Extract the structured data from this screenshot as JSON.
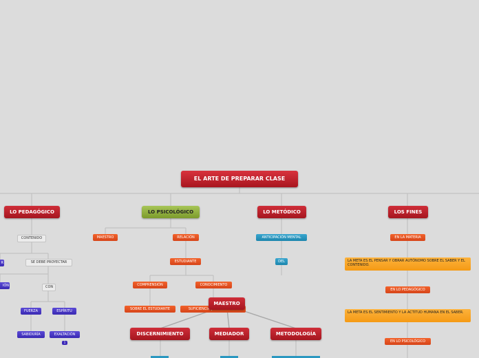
{
  "map": {
    "root": "EL ARTE DE PREPARAR CLASE",
    "main_topics": {
      "pedagogico": "LO PEDAGÓGICO",
      "psicologico": "LO PSICOLÓGICO",
      "metodico": "LO METÓDICO",
      "fines": "LOS FINES"
    },
    "pedagogico": {
      "contenido": "CONTENIDO",
      "left_partial_1": "R",
      "left_partial_2": "IÓN",
      "proyectar": "SE DEBE PROYECTAR",
      "con": "CON",
      "fuerza": "FUERZA",
      "espiritu": "ESPÍRITU",
      "sabiduria": "SABIDURÍA",
      "exaltacion": "EXALTACIÓN",
      "badge": "1"
    },
    "psicologico": {
      "maestro": "MAESTRO",
      "relacion": "RELACIÓN",
      "estudiante": "ESTUDIANTE",
      "comprension": "COMPRENSIÓN",
      "conocimiento": "CONOCIMIENTO",
      "sobre_estudiante": "SOBRE EL ESTUDIANTE",
      "suficiencia": "SUFICIENCIA | DIFICULTADES"
    },
    "metodico": {
      "anticipacion": "ANTICIPACIÓN MENTAL",
      "del": "DEL"
    },
    "fines": {
      "materia": "EN LA MATERIA",
      "meta_1": "LA META ES EL PENSAR Y OBRAR AUTÓNOMO SOBRE EL SABER Y EL CONTENIDO.",
      "en_pedagogico": "EN LO PEDAGÓGICO",
      "meta_2": "LA META ES EL SENTIMIENTO Y LA ACTITUD HUMANA EN EL SABER.",
      "en_psicologico": "EN LO PSICOLÓGICO"
    },
    "maestro_floating": {
      "label": "MAESTRO",
      "discernimiento": "DISCERNIMIENTO",
      "mediador": "MEDIADOR",
      "metodologia": "METODOLOGÍA"
    }
  },
  "colors": {
    "background": "#dcdcdc",
    "connector": "#b9b9b9",
    "main_topic": "#b81f29",
    "psychology_topic": "#94b143",
    "orange_node": "#e9521f",
    "blue_node": "#2a97c0",
    "purple_node": "#4838c6",
    "note_node": "#f7a425"
  }
}
